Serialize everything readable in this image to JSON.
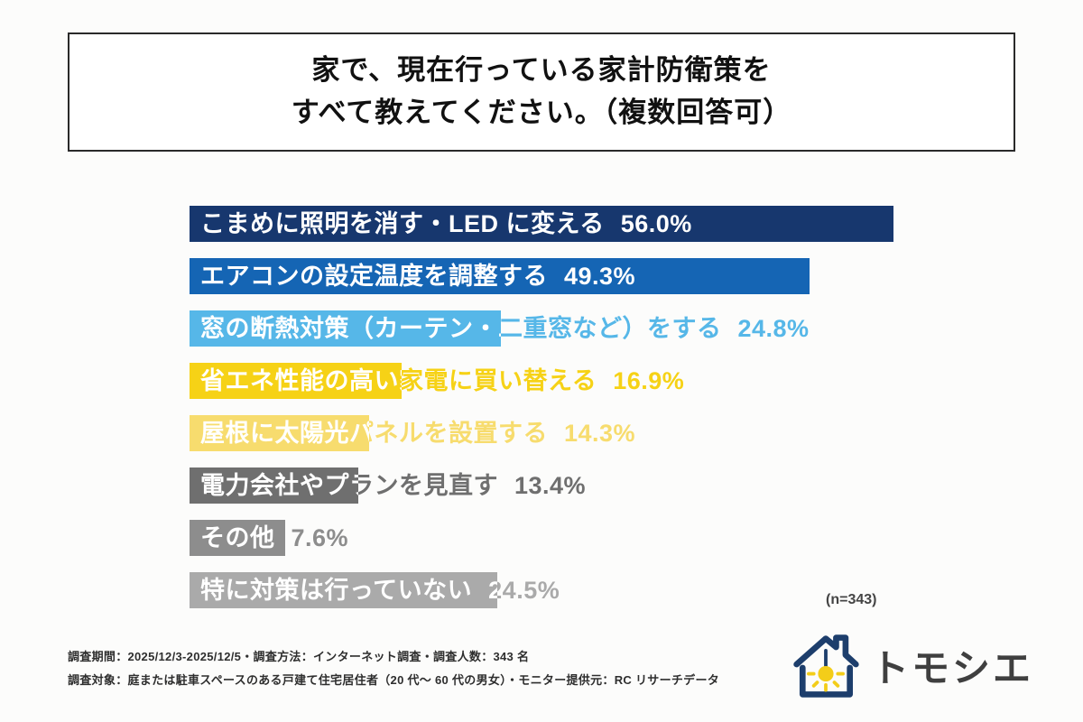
{
  "title": {
    "lines": [
      "家で、現在行っている家計防衛策を",
      "すべて教えてください。（複数回答可）"
    ]
  },
  "chart_data": {
    "type": "bar",
    "orientation": "horizontal",
    "title": "家で、現在行っている家計防衛策をすべて教えてください。（複数回答可）",
    "xlim": [
      0,
      56
    ],
    "grid": false,
    "n_label": "(n=343)",
    "categories": [
      "こまめに照明を消す・LED に変える",
      "エアコンの設定温度を調整する",
      "窓の断熱対策（カーテン・二重窓など）をする",
      "省エネ性能の高い家電に買い替える",
      "屋根に太陽光パネルを設置する",
      "電力会社やプランを見直す",
      "その他",
      "特に対策は行っていない"
    ],
    "values": [
      56.0,
      49.3,
      24.8,
      16.9,
      14.3,
      13.4,
      7.6,
      24.5
    ],
    "bars": [
      {
        "label": "こまめに照明を消す・LED に変える",
        "pct": "56.0%",
        "value": 56.0,
        "color": "#17376e"
      },
      {
        "label": "エアコンの設定温度を調整する",
        "pct": "49.3%",
        "value": 49.3,
        "color": "#1565b4"
      },
      {
        "label": "窓の断熱対策（カーテン・二重窓など）をする",
        "pct": "24.8%",
        "value": 24.8,
        "color": "#56b7e8"
      },
      {
        "label": "省エネ性能の高い家電に買い替える",
        "pct": "16.9%",
        "value": 16.9,
        "color": "#f6d216"
      },
      {
        "label": "屋根に太陽光パネルを設置する",
        "pct": "14.3%",
        "value": 14.3,
        "color": "#f7dc6e"
      },
      {
        "label": "電力会社やプランを見直す",
        "pct": "13.4%",
        "value": 13.4,
        "color": "#6f6f6f"
      },
      {
        "label": "その他",
        "pct": "7.6%",
        "value": 7.6,
        "color": "#8d8d8d"
      },
      {
        "label": "特に対策は行っていない",
        "pct": "24.5%",
        "value": 24.5,
        "color": "#aaaaaa"
      }
    ]
  },
  "footer": {
    "line1": "調査期間：2025/12/3-2025/12/5・調査方法：インターネット調査・調査人数：343 名",
    "line2": "調査対象：庭または駐車スペースのある戸建て住宅居住者（20 代〜 60 代の男女）・モニター提供元：RC リサーチデータ"
  },
  "logo": {
    "text": "トモシエ",
    "house_color": "#1d3e6c",
    "bulb_color": "#f3cd19",
    "text_color": "#3f3f3f"
  }
}
